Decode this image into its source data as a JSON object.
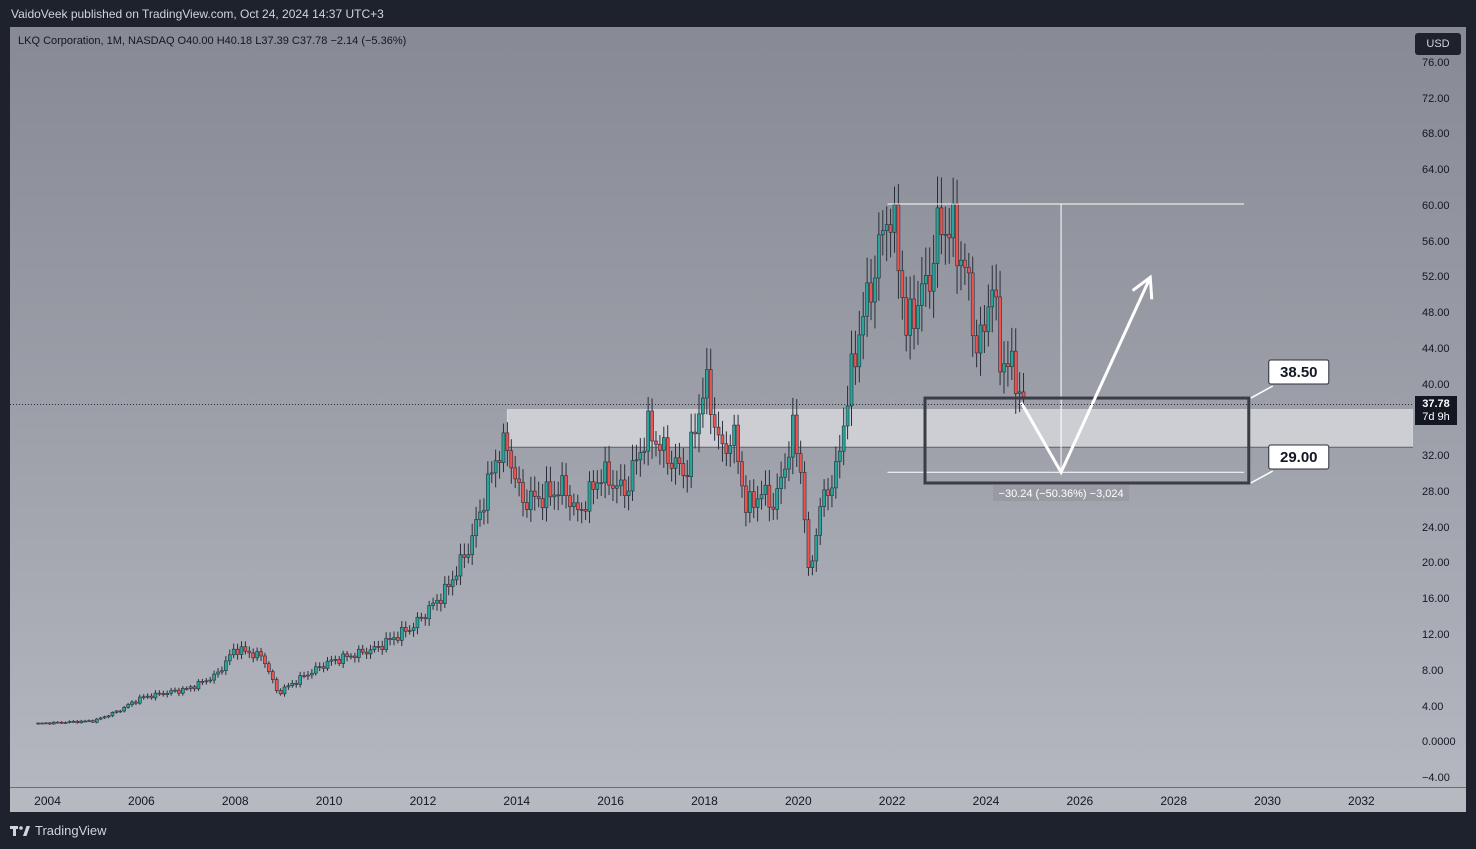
{
  "header": {
    "published_text": "VaidoVeek published on TradingView.com, Oct 24, 2024 14:37 UTC+3"
  },
  "brand": {
    "name": "TradingView"
  },
  "symbol_legend": {
    "text": "LKQ Corporation, 1M, NASDAQ  O40.00  H40.18  L37.39  C37.78  −2.14 (−5.36%)"
  },
  "currency_button": "USD",
  "last_price": {
    "value": "37.78",
    "countdown": "7d 9h"
  },
  "annotations": {
    "label_upper": "38.50",
    "label_lower": "29.00",
    "measure_text": "−30.24 (−50.36%) −3,024"
  },
  "colors": {
    "up_candle": "#26a69a",
    "down_candle": "#ef5350",
    "background_top": "#878a94",
    "background_bottom": "#b4b7bf"
  },
  "chart_data": {
    "type": "candlestick",
    "interval": "1M",
    "y_axis_ticks": [
      "76.00",
      "72.00",
      "68.00",
      "64.00",
      "60.00",
      "56.00",
      "52.00",
      "48.00",
      "44.00",
      "40.00",
      "32.00",
      "28.00",
      "24.00",
      "20.00",
      "16.00",
      "12.00",
      "8.00",
      "4.00",
      "0.0000",
      "−4.00"
    ],
    "x_axis_ticks": [
      "2004",
      "2006",
      "2008",
      "2010",
      "2012",
      "2014",
      "2016",
      "2018",
      "2020",
      "2022",
      "2024",
      "2026",
      "2028",
      "2030",
      "2032"
    ],
    "ylim": [
      -5,
      80
    ],
    "xlim": [
      2003.2,
      2033.1
    ],
    "anchor_points": [
      {
        "x": 2003.8,
        "y": 2.1
      },
      {
        "x": 2005.0,
        "y": 2.4
      },
      {
        "x": 2005.5,
        "y": 3.5
      },
      {
        "x": 2006.0,
        "y": 5.0
      },
      {
        "x": 2007.0,
        "y": 6.0
      },
      {
        "x": 2007.6,
        "y": 7.5
      },
      {
        "x": 2008.0,
        "y": 10.5
      },
      {
        "x": 2008.6,
        "y": 9.5
      },
      {
        "x": 2008.9,
        "y": 5.5
      },
      {
        "x": 2009.5,
        "y": 7.5
      },
      {
        "x": 2010.0,
        "y": 9.0
      },
      {
        "x": 2011.0,
        "y": 10.5
      },
      {
        "x": 2011.8,
        "y": 13.0
      },
      {
        "x": 2012.5,
        "y": 17.0
      },
      {
        "x": 2013.0,
        "y": 22.0
      },
      {
        "x": 2013.6,
        "y": 32.5
      },
      {
        "x": 2013.8,
        "y": 33.0
      },
      {
        "x": 2014.1,
        "y": 27.0
      },
      {
        "x": 2014.6,
        "y": 27.5
      },
      {
        "x": 2015.0,
        "y": 28.5
      },
      {
        "x": 2015.3,
        "y": 25.5
      },
      {
        "x": 2015.8,
        "y": 30.0
      },
      {
        "x": 2016.3,
        "y": 28.0
      },
      {
        "x": 2016.8,
        "y": 35.0
      },
      {
        "x": 2017.2,
        "y": 32.0
      },
      {
        "x": 2017.6,
        "y": 30.0
      },
      {
        "x": 2017.9,
        "y": 37.5
      },
      {
        "x": 2018.0,
        "y": 40.5
      },
      {
        "x": 2018.4,
        "y": 32.0
      },
      {
        "x": 2018.6,
        "y": 35.0
      },
      {
        "x": 2018.9,
        "y": 26.0
      },
      {
        "x": 2019.2,
        "y": 28.0
      },
      {
        "x": 2019.5,
        "y": 26.5
      },
      {
        "x": 2019.9,
        "y": 35.0
      },
      {
        "x": 2020.1,
        "y": 29.0
      },
      {
        "x": 2020.2,
        "y": 18.0
      },
      {
        "x": 2020.5,
        "y": 27.0
      },
      {
        "x": 2020.8,
        "y": 30.0
      },
      {
        "x": 2021.0,
        "y": 37.0
      },
      {
        "x": 2021.3,
        "y": 46.0
      },
      {
        "x": 2021.6,
        "y": 52.0
      },
      {
        "x": 2021.9,
        "y": 59.5
      },
      {
        "x": 2022.1,
        "y": 56.0
      },
      {
        "x": 2022.3,
        "y": 46.0
      },
      {
        "x": 2022.6,
        "y": 50.0
      },
      {
        "x": 2022.8,
        "y": 52.0
      },
      {
        "x": 2023.0,
        "y": 58.0
      },
      {
        "x": 2023.3,
        "y": 57.0
      },
      {
        "x": 2023.6,
        "y": 52.0
      },
      {
        "x": 2023.8,
        "y": 44.0
      },
      {
        "x": 2024.0,
        "y": 46.5
      },
      {
        "x": 2024.1,
        "y": 53.0
      },
      {
        "x": 2024.3,
        "y": 43.0
      },
      {
        "x": 2024.6,
        "y": 41.5
      },
      {
        "x": 2024.8,
        "y": 37.8
      }
    ],
    "horizontal_zone": {
      "from_y": 33.0,
      "to_y": 37.2,
      "start_x": 2013.8
    },
    "target_box": {
      "x1": 2022.7,
      "x2": 2029.6,
      "y_top": 38.5,
      "y_bottom": 29.0
    },
    "projection_path": [
      {
        "x": 2024.75,
        "y": 38.0
      },
      {
        "x": 2025.6,
        "y": 30.2
      },
      {
        "x": 2027.5,
        "y": 52.0
      }
    ],
    "measure": {
      "x": 2025.6,
      "y_from": 60.2,
      "y_to": 30.2,
      "line_start_x": 2021.9,
      "line_end_x": 2029.5
    }
  }
}
